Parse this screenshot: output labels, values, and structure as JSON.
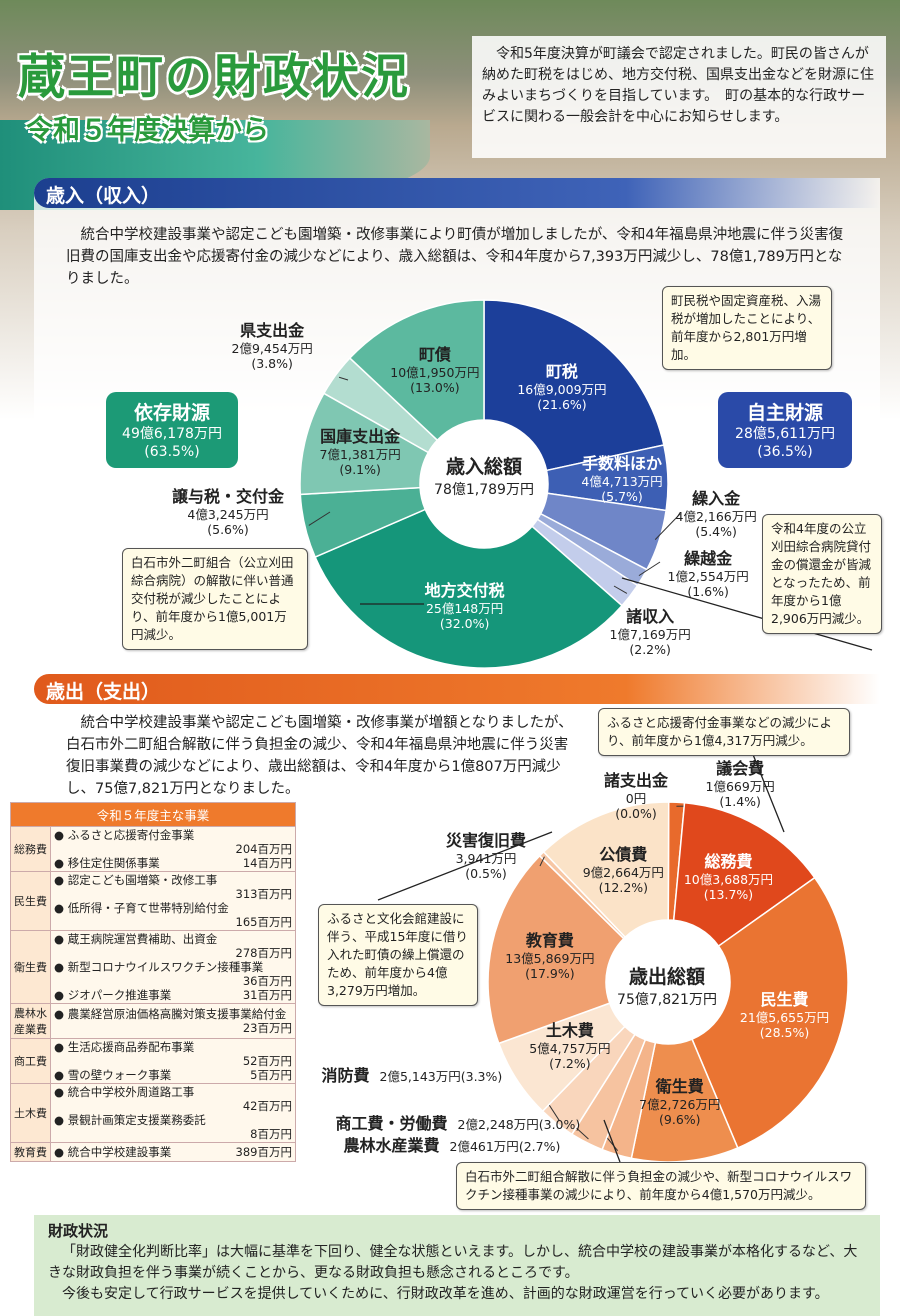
{
  "header": {
    "title": "蔵王町の財政状況",
    "subtitle": "令和５年度決算から",
    "intro": "令和5年度決算が町議会で認定されました。町民の皆さんが納めた町税をはじめ、地方交付税、国県支出金などを財源に住みよいまちづくりを目指しています。　町の基本的な行政サービスに関わる一般会計を中心にお知らせします。"
  },
  "revenue": {
    "heading": "歳入（収入）",
    "text": "統合中学校建設事業や認定こども園増築・改修事業により町債が増加しましたが、令和4年福島県沖地震に伴う災害復旧費の国庫支出金や応援寄付金の減少などにより、歳入総額は、令和4年度から7,393万円減少し、78億1,789万円となりました。",
    "center_title": "歳入総額",
    "center_value": "78億1,789万円",
    "dependent": {
      "title": "依存財源",
      "amount": "49億6,178万円",
      "pct": "(63.5%)"
    },
    "own": {
      "title": "自主財源",
      "amount": "28億5,611万円",
      "pct": "(36.5%)"
    },
    "callouts": {
      "tax": "町民税や固定資産税、入湯税が増加したことにより、前年度から2,801万円増加。",
      "other": "令和4年度の公立刈田綜合病院貸付金の償還金が皆減となったため、前年度から1億2,906万円減少。",
      "grant": "白石市外二町組合（公立刈田綜合病院）の解散に伴い普通交付税が減少したことにより、前年度から1億5,001万円減少。"
    }
  },
  "expenditure": {
    "heading": "歳出（支出）",
    "text": "統合中学校建設事業や認定こども園増築・改修事業が増額となりましたが、白石市外二町組合解散に伴う負担金の減少、令和4年福島県沖地震に伴う災害復旧事業費の減少などにより、歳出総額は、令和4年度から1億807万円減少し、75億7,821万円となりました。",
    "center_title": "歳出総額",
    "center_value": "75億7,821万円",
    "callouts": {
      "general": "ふるさと応援寄付金事業などの減少により、前年度から1億4,317万円減少。",
      "debt": "ふるさと文化会館建設に伴う、平成15年度に借り入れた町債の繰上償還のため、前年度から4億3,279万円増加。",
      "health": "白石市外二町組合解散に伴う負担金の減少や、新型コロナウイルスワクチン接種事業の減少により、前年度から4億1,570万円減少。"
    }
  },
  "table": {
    "title": "令和５年度主な事業",
    "rows": [
      {
        "cat": "総務費",
        "items": [
          {
            "name": "ふるさと応援寄付金事業",
            "amt": "204百万円"
          },
          {
            "name": "移住定住関係事業",
            "amt": "14百万円",
            "inline": true
          }
        ]
      },
      {
        "cat": "民生費",
        "items": [
          {
            "name": "認定こども園増築・改修工事",
            "amt": "313百万円"
          },
          {
            "name": "低所得・子育て世帯特別給付金",
            "amt": "165百万円"
          }
        ]
      },
      {
        "cat": "衛生費",
        "items": [
          {
            "name": "蔵王病院運営費補助、出資金",
            "amt": "278百万円"
          },
          {
            "name": "新型コロナウイルスワクチン接種事業",
            "amt": "36百万円"
          },
          {
            "name": "ジオパーク推進事業",
            "amt": "31百万円",
            "inline": true
          }
        ]
      },
      {
        "cat": "農林水産業費",
        "items": [
          {
            "name": "農業経営原油価格高騰対策支援事業給付金",
            "amt": "23百万円"
          }
        ]
      },
      {
        "cat": "商工費",
        "items": [
          {
            "name": "生活応援商品券配布事業",
            "amt": "52百万円"
          },
          {
            "name": "雪の壁ウォーク事業",
            "amt": "5百万円",
            "inline": true
          }
        ]
      },
      {
        "cat": "土木費",
        "items": [
          {
            "name": "統合中学校外周道路工事",
            "amt": "42百万円"
          },
          {
            "name": "景観計画策定支援業務委託",
            "amt": "8百万円"
          }
        ]
      },
      {
        "cat": "教育費",
        "items": [
          {
            "name": "統合中学校建設事業",
            "amt": "389百万円",
            "inline": true
          }
        ]
      }
    ]
  },
  "status": {
    "title": "財政状況",
    "p1": "「財政健全化判断比率」は大幅に基準を下回り、健全な状態といえます。しかし、統合中学校の建設事業が本格化するなど、大きな財政負担を伴う事業が続くことから、更なる財政負担も懸念されるところです。",
    "p2": "今後も安定して行政サービスを提供していくために、行財政改革を進め、計画的な財政運営を行っていく必要があります。"
  },
  "chart_data": [
    {
      "type": "pie",
      "title": "歳入総額 78億1,789万円",
      "series": [
        {
          "name": "町税",
          "value": "16億9,009万円",
          "pct": 21.6,
          "color": "#1c3f9a"
        },
        {
          "name": "手数料ほか",
          "value": "4億4,713万円",
          "pct": 5.7,
          "color": "#3d5fb4"
        },
        {
          "name": "繰入金",
          "value": "4億2,166万円",
          "pct": 5.4,
          "color": "#6f86c8"
        },
        {
          "name": "繰越金",
          "value": "1億2,554万円",
          "pct": 1.6,
          "color": "#9aabd9"
        },
        {
          "name": "諸収入",
          "value": "1億7,169万円",
          "pct": 2.2,
          "color": "#c3cdeb"
        },
        {
          "name": "地方交付税",
          "value": "25億148万円",
          "pct": 32.0,
          "color": "#15967a"
        },
        {
          "name": "譲与税・交付金",
          "value": "4億3,245万円",
          "pct": 5.6,
          "color": "#4bb095"
        },
        {
          "name": "国庫支出金",
          "value": "7億1,381万円",
          "pct": 9.1,
          "color": "#7fc7b2"
        },
        {
          "name": "県支出金",
          "value": "2億9,454万円",
          "pct": 3.8,
          "color": "#b3ddd0"
        },
        {
          "name": "町債",
          "value": "10億1,950万円",
          "pct": 13.0,
          "color": "#5cb99f"
        }
      ]
    },
    {
      "type": "pie",
      "title": "歳出総額 75億7,821万円",
      "series": [
        {
          "name": "諸支出金",
          "value": "0円",
          "pct": 0.0,
          "color": "#f2c9a8"
        },
        {
          "name": "議会費",
          "value": "1億669万円",
          "pct": 1.4,
          "color": "#e86a2c"
        },
        {
          "name": "総務費",
          "value": "10億3,688万円",
          "pct": 13.7,
          "color": "#e0481c"
        },
        {
          "name": "民生費",
          "value": "21億5,655万円",
          "pct": 28.5,
          "color": "#ea7432"
        },
        {
          "name": "衛生費",
          "value": "7億2,726万円",
          "pct": 9.6,
          "color": "#ee8e4e"
        },
        {
          "name": "農林水産業費",
          "value": "2億461万円",
          "pct": 2.7,
          "color": "#f4b48a"
        },
        {
          "name": "商工費・労働費",
          "value": "2億2,248万円",
          "pct": 3.0,
          "color": "#f6c3a0"
        },
        {
          "name": "消防費",
          "value": "2億5,143万円",
          "pct": 3.3,
          "color": "#f9d6bc"
        },
        {
          "name": "土木費",
          "value": "5億4,757万円",
          "pct": 7.2,
          "color": "#fbe6d2"
        },
        {
          "name": "教育費",
          "value": "13億5,869万円",
          "pct": 17.9,
          "color": "#f0a070"
        },
        {
          "name": "災害復旧費",
          "value": "3,941万円",
          "pct": 0.5,
          "color": "#f7c6a4"
        },
        {
          "name": "公債費",
          "value": "9億2,664万円",
          "pct": 12.2,
          "color": "#fbe3c8"
        }
      ]
    }
  ]
}
